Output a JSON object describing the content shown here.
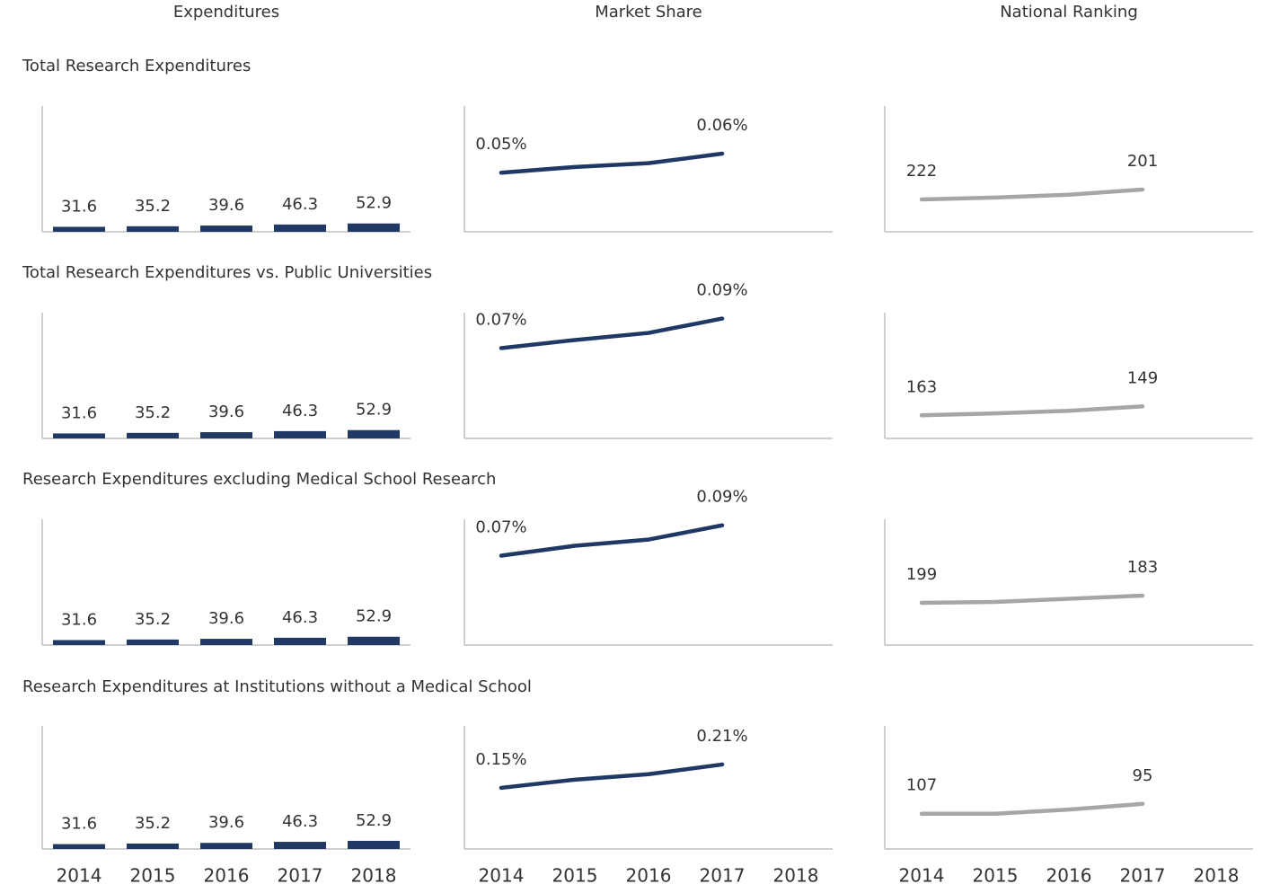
{
  "columns": [
    "Expenditures",
    "Market Share",
    "National Ranking"
  ],
  "rows": [
    {
      "title": "Total Research Expenditures"
    },
    {
      "title": "Total Research Expenditures vs. Public Universities"
    },
    {
      "title": "Research Expenditures excluding Medical School Research"
    },
    {
      "title": "Research Expenditures at Institutions without a Medical School"
    }
  ],
  "categories": [
    "2014",
    "2015",
    "2016",
    "2017",
    "2018"
  ],
  "chart_data": [
    {
      "type": "bar",
      "values": [
        31.6,
        35.2,
        39.6,
        46.3,
        52.9
      ],
      "color": "#1f3864",
      "ylim": [
        0,
        800
      ]
    },
    {
      "type": "line",
      "values": [
        0.05,
        0.053,
        0.055,
        0.06,
        null
      ],
      "value_labels": [
        "0.05%",
        null,
        null,
        "0.06%",
        null
      ],
      "color": "#1f3864",
      "ylim": [
        0.019,
        0.085
      ]
    },
    {
      "type": "line",
      "values": [
        222,
        218,
        212,
        201,
        null
      ],
      "value_labels": [
        "222",
        null,
        null,
        "201",
        null
      ],
      "color": "#a6a6a6",
      "ylim": [
        291,
        23
      ]
    },
    {
      "type": "bar",
      "values": [
        31.6,
        35.2,
        39.6,
        46.3,
        52.9
      ],
      "color": "#1f3864",
      "ylim": [
        0,
        800
      ]
    },
    {
      "type": "line",
      "values": [
        0.07,
        0.0755,
        0.0803,
        0.09,
        null
      ],
      "value_labels": [
        "0.07%",
        null,
        null,
        "0.09%",
        null
      ],
      "color": "#1f3864",
      "ylim": [
        0.009,
        0.094
      ]
    },
    {
      "type": "line",
      "values": [
        163,
        160,
        156,
        149,
        null
      ],
      "value_labels": [
        "163",
        null,
        null,
        "149",
        null
      ],
      "color": "#a6a6a6",
      "ylim": [
        199,
        3
      ]
    },
    {
      "type": "bar",
      "values": [
        31.6,
        35.2,
        39.6,
        46.3,
        52.9
      ],
      "color": "#1f3864",
      "ylim": [
        0,
        800
      ]
    },
    {
      "type": "line",
      "values": [
        0.07,
        0.0765,
        0.0806,
        0.09,
        null
      ],
      "value_labels": [
        "0.07%",
        null,
        null,
        "0.09%",
        null
      ],
      "color": "#1f3864",
      "ylim": [
        0.011,
        0.094
      ]
    },
    {
      "type": "line",
      "values": [
        199,
        197,
        190,
        183,
        null
      ],
      "value_labels": [
        "199",
        null,
        null,
        "183",
        null
      ],
      "color": "#a6a6a6",
      "ylim": [
        293,
        13
      ]
    },
    {
      "type": "bar",
      "values": [
        31.6,
        35.2,
        39.6,
        46.3,
        52.9
      ],
      "color": "#1f3864",
      "ylim": [
        0,
        800
      ]
    },
    {
      "type": "line",
      "values": [
        0.15,
        0.171,
        0.185,
        0.21,
        null
      ],
      "value_labels": [
        "0.15%",
        null,
        null,
        "0.21%",
        null
      ],
      "color": "#1f3864",
      "ylim": [
        -0.007,
        0.309
      ]
    },
    {
      "type": "line",
      "values": [
        107,
        107,
        102,
        95,
        null
      ],
      "value_labels": [
        "107",
        null,
        null,
        "95",
        null
      ],
      "color": "#a6a6a6",
      "ylim": [
        150,
        0
      ]
    }
  ]
}
